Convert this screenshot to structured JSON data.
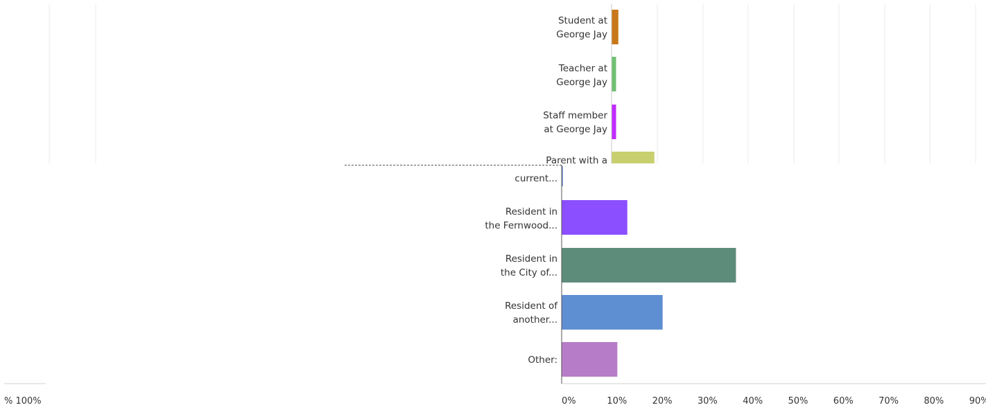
{
  "chart_data": [
    {
      "type": "bar",
      "orientation": "horizontal",
      "categories": [
        "Student at\nGeorge Jay",
        "Teacher at\nGeorge Jay",
        "Staff member\nat George Jay",
        "Parent with a"
      ],
      "values": [
        1.5,
        1,
        1,
        9.5
      ],
      "colors": [
        "#c8771a",
        "#6fbf73",
        "#c02bff",
        "#c8cf6e"
      ]
    },
    {
      "type": "bar",
      "orientation": "horizontal",
      "categories": [
        "current...",
        "Resident in\nthe Fernwood...",
        "Resident in\nthe City of...",
        "Resident of\nanother...",
        "Other:"
      ],
      "values": [
        0.3,
        14.5,
        38.5,
        22.3,
        12.3
      ],
      "colors": [
        "#7f9bd6",
        "#8b4fff",
        "#5e8c7a",
        "#5f8fd3",
        "#b77cc7"
      ],
      "xlim": [
        0,
        90
      ],
      "x_ticks": [
        "0%",
        "10%",
        "20%",
        "30%",
        "40%",
        "50%",
        "60%",
        "70%",
        "80%",
        "90%"
      ]
    }
  ],
  "left_fragment": {
    "tick_label": "% 100%"
  }
}
